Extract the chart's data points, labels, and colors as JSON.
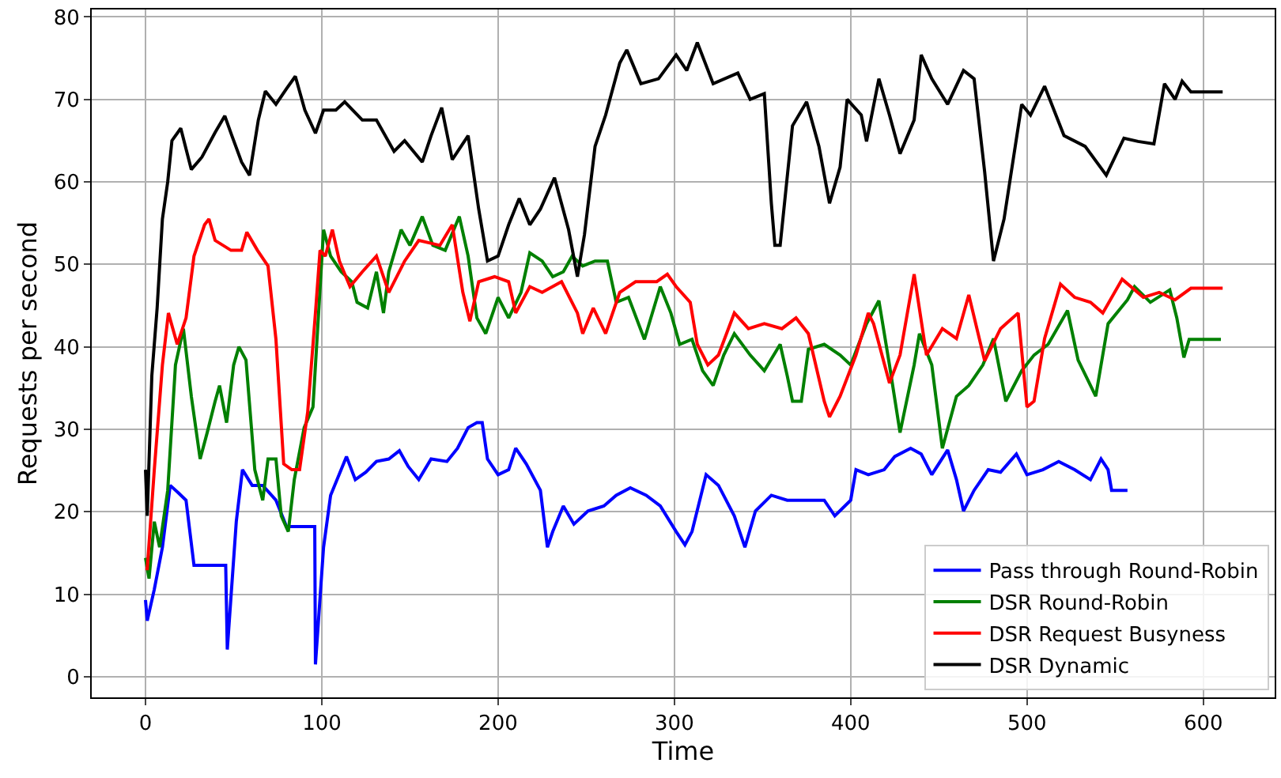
{
  "chart_data": {
    "type": "line",
    "xlabel": "Time",
    "ylabel": "Requests per second",
    "xlim": [
      -30.5,
      640.5
    ],
    "ylim": [
      -2.5,
      80.9
    ],
    "xticks": [
      0,
      100,
      200,
      300,
      400,
      500,
      600
    ],
    "yticks": [
      0,
      10,
      20,
      30,
      40,
      50,
      60,
      70,
      80
    ],
    "grid": true,
    "legend": "bottom right",
    "marker": "none",
    "line_style": "solid",
    "series": [
      {
        "name": "Pass through Round-Robin",
        "color": "#0000ff",
        "x": [
          0,
          1,
          5,
          9.6,
          14,
          18.6,
          23,
          27.5,
          35,
          45.5,
          46.4,
          51.5,
          55,
          60.5,
          66.5,
          74,
          80,
          86,
          96,
          96.4,
          101,
          105,
          114,
          119,
          125,
          131,
          138,
          144,
          149,
          155,
          162,
          171,
          177,
          183,
          188,
          191,
          194,
          200,
          206,
          210,
          216,
          224,
          228,
          231,
          237,
          243,
          251,
          260,
          267,
          275,
          284,
          292,
          301,
          306,
          310,
          318,
          325,
          334,
          340,
          346,
          355,
          364,
          376,
          385,
          391,
          400,
          403,
          410,
          419,
          425,
          434,
          440,
          446,
          455,
          460,
          464,
          470,
          478,
          485,
          494,
          500,
          509,
          518,
          527,
          536,
          542,
          546,
          548,
          557
        ],
        "values": [
          9.3,
          6.8,
          10.6,
          15.7,
          23.2,
          22.3,
          21.4,
          13.5,
          13.5,
          13.5,
          3.3,
          18.8,
          25.1,
          23.2,
          23.2,
          21.4,
          18.2,
          18.2,
          18.2,
          1.5,
          15.7,
          22,
          26.7,
          23.9,
          24.8,
          26.1,
          26.4,
          27.4,
          25.5,
          23.9,
          26.4,
          26.1,
          27.7,
          30.2,
          30.8,
          30.8,
          26.4,
          24.5,
          25.1,
          27.7,
          25.8,
          22.6,
          15.7,
          17.6,
          20.7,
          18.5,
          20.1,
          20.7,
          22,
          22.9,
          22,
          20.7,
          17.6,
          16,
          17.6,
          24.5,
          23.2,
          19.5,
          15.7,
          20.1,
          22,
          21.4,
          21.4,
          21.4,
          19.5,
          21.4,
          25.1,
          24.5,
          25.1,
          26.7,
          27.7,
          27,
          24.5,
          27.5,
          23.9,
          20.1,
          22.6,
          25.1,
          24.8,
          27,
          24.5,
          25.1,
          26.1,
          25.1,
          23.9,
          26.4,
          25.1,
          22.6,
          22.6
        ]
      },
      {
        "name": "DSR Round-Robin",
        "color": "#008000",
        "x": [
          0,
          2,
          5,
          8,
          12.6,
          17,
          21.5,
          26,
          31,
          35,
          39.5,
          42,
          46,
          50,
          53,
          57,
          62,
          66.5,
          69.5,
          74,
          77,
          81,
          84.4,
          90,
          95,
          101,
          105,
          111,
          117,
          120,
          126,
          131,
          135,
          138,
          145,
          150,
          157,
          163,
          170,
          178,
          183,
          188,
          193,
          200,
          206,
          213,
          218,
          225,
          231,
          237,
          242,
          248,
          255,
          262,
          267,
          274,
          283,
          292,
          298,
          303,
          310,
          316,
          322,
          328,
          334,
          343,
          351,
          360,
          364,
          367,
          372,
          376,
          385,
          394,
          400,
          409,
          416,
          422,
          428,
          436,
          439,
          446,
          452,
          460,
          467,
          475,
          481,
          488,
          497,
          504,
          512,
          523,
          529,
          539,
          546,
          557,
          561,
          570,
          581,
          585,
          589,
          592,
          610
        ],
        "values": [
          14.4,
          11.9,
          18.8,
          15.7,
          22.6,
          37.8,
          42.2,
          34,
          26.4,
          29.6,
          33.4,
          35.3,
          30.8,
          37.8,
          40,
          38.4,
          25.1,
          21.4,
          26.4,
          26.4,
          19.5,
          17.6,
          23.9,
          30.2,
          32.7,
          54.2,
          51,
          49.1,
          47.9,
          45.4,
          44.7,
          49.1,
          44.1,
          49.1,
          54.2,
          52.3,
          55.8,
          52.3,
          51.7,
          55.8,
          51,
          43.5,
          41.6,
          46,
          43.5,
          46.6,
          51.4,
          50.4,
          48.5,
          49.1,
          51,
          49.8,
          50.4,
          50.4,
          45.4,
          46,
          40.9,
          47.3,
          44.1,
          40.3,
          40.9,
          37.1,
          35.3,
          39,
          41.6,
          39,
          37.1,
          40.3,
          36.5,
          33.4,
          33.4,
          39.7,
          40.3,
          39,
          37.8,
          42.8,
          45.6,
          37.8,
          29.6,
          37.8,
          41.6,
          37.8,
          27.7,
          34,
          35.3,
          37.8,
          41,
          33.4,
          37.1,
          39,
          40.3,
          44.4,
          38.4,
          34,
          42.8,
          45.7,
          47.3,
          45.4,
          46.9,
          43.5,
          38.7,
          40.9,
          40.9
        ]
      },
      {
        "name": "DSR Request Busyness",
        "color": "#ff0000",
        "x": [
          0,
          1,
          5,
          9.6,
          13,
          18,
          23,
          27.5,
          33.5,
          36,
          39.5,
          48.5,
          54.5,
          57.5,
          63.5,
          69.5,
          74,
          78.4,
          83,
          87.4,
          92,
          96.4,
          99,
          102,
          106,
          110,
          116,
          123,
          131,
          138,
          147,
          155,
          167,
          174,
          180,
          184,
          189,
          198,
          206,
          210,
          218,
          225,
          236,
          245,
          248,
          254,
          261,
          269,
          278,
          290,
          296,
          301,
          309,
          313,
          319,
          325,
          334,
          342,
          351,
          361,
          369,
          376,
          385,
          388,
          394,
          403,
          410,
          413,
          422,
          428,
          436,
          443,
          452,
          460,
          467,
          476,
          485,
          495,
          500,
          504,
          510,
          519,
          527,
          536,
          543,
          554,
          566,
          575,
          584,
          593,
          611
        ],
        "values": [
          13.1,
          13.1,
          25.1,
          37.8,
          44.1,
          40.3,
          43.5,
          51,
          54.8,
          55.5,
          52.9,
          51.7,
          51.7,
          53.9,
          51.7,
          49.8,
          40.9,
          25.8,
          25.1,
          25.1,
          32.1,
          44.1,
          51.7,
          51,
          54.2,
          50.4,
          47.3,
          49.1,
          51,
          46.6,
          50.4,
          52.9,
          52.3,
          54.8,
          46.6,
          43.1,
          47.9,
          48.5,
          47.9,
          44.1,
          47.3,
          46.6,
          47.9,
          44.1,
          41.6,
          44.7,
          41.6,
          46.6,
          47.9,
          47.9,
          48.8,
          47.3,
          45.4,
          40.3,
          37.8,
          39,
          44.1,
          42.2,
          42.8,
          42.2,
          43.5,
          41.6,
          33.4,
          31.5,
          34,
          39,
          44.1,
          42.8,
          35.6,
          39,
          48.8,
          39,
          42.2,
          41,
          46.3,
          38.3,
          42.2,
          44.1,
          32.7,
          33.4,
          41,
          47.6,
          46,
          45.4,
          44.1,
          48.2,
          46,
          46.6,
          45.7,
          47.1,
          47.1
        ]
      },
      {
        "name": "DSR Dynamic",
        "color": "#000000",
        "x": [
          0,
          1,
          3.6,
          6.6,
          9.6,
          12.6,
          15,
          20,
          26,
          32,
          39.5,
          45,
          49,
          54.5,
          59,
          64,
          68,
          74,
          80,
          85,
          90.4,
          96.4,
          101,
          108,
          113,
          123,
          131,
          141,
          147,
          157,
          162,
          168,
          174,
          183,
          186,
          189,
          194,
          200,
          206,
          212,
          218,
          224,
          232,
          240,
          245,
          249,
          255,
          261,
          269,
          273,
          281,
          291,
          301,
          307,
          313,
          322,
          336,
          343,
          351,
          355,
          357,
          360,
          367,
          375,
          382,
          388,
          394,
          398,
          406,
          409,
          416,
          422,
          428,
          436,
          440,
          446,
          455,
          464,
          470,
          476,
          481,
          487,
          497,
          502,
          510,
          521,
          533,
          545,
          555,
          563,
          572,
          578,
          584,
          588,
          593,
          611
        ],
        "values": [
          25.1,
          19.5,
          36.5,
          44.7,
          55.5,
          60,
          65,
          66.5,
          61.5,
          63,
          66,
          68,
          65.6,
          62.4,
          60.8,
          67.5,
          71,
          69.4,
          71.3,
          72.8,
          68.7,
          65.9,
          68.7,
          68.7,
          69.7,
          67.5,
          67.5,
          63.7,
          65,
          62.4,
          65.6,
          69,
          62.7,
          65.6,
          61.2,
          56.7,
          50.4,
          51,
          54.8,
          58,
          54.8,
          56.7,
          60.5,
          54.2,
          48.5,
          53.6,
          64.3,
          68.1,
          74.4,
          76,
          71.9,
          72.5,
          75.4,
          73.5,
          76.9,
          71.9,
          73.2,
          70,
          70.7,
          57.4,
          52.3,
          52.3,
          66.8,
          69.7,
          64.3,
          57.4,
          61.8,
          70,
          68.1,
          64.9,
          72.5,
          68.1,
          63.4,
          67.5,
          75.4,
          72.5,
          69.4,
          73.5,
          72.5,
          61.2,
          50.4,
          55.5,
          69.4,
          68.1,
          71.6,
          65.6,
          64.3,
          60.8,
          65.3,
          64.9,
          64.6,
          71.9,
          70,
          72.2,
          70.9,
          70.9
        ]
      }
    ]
  }
}
